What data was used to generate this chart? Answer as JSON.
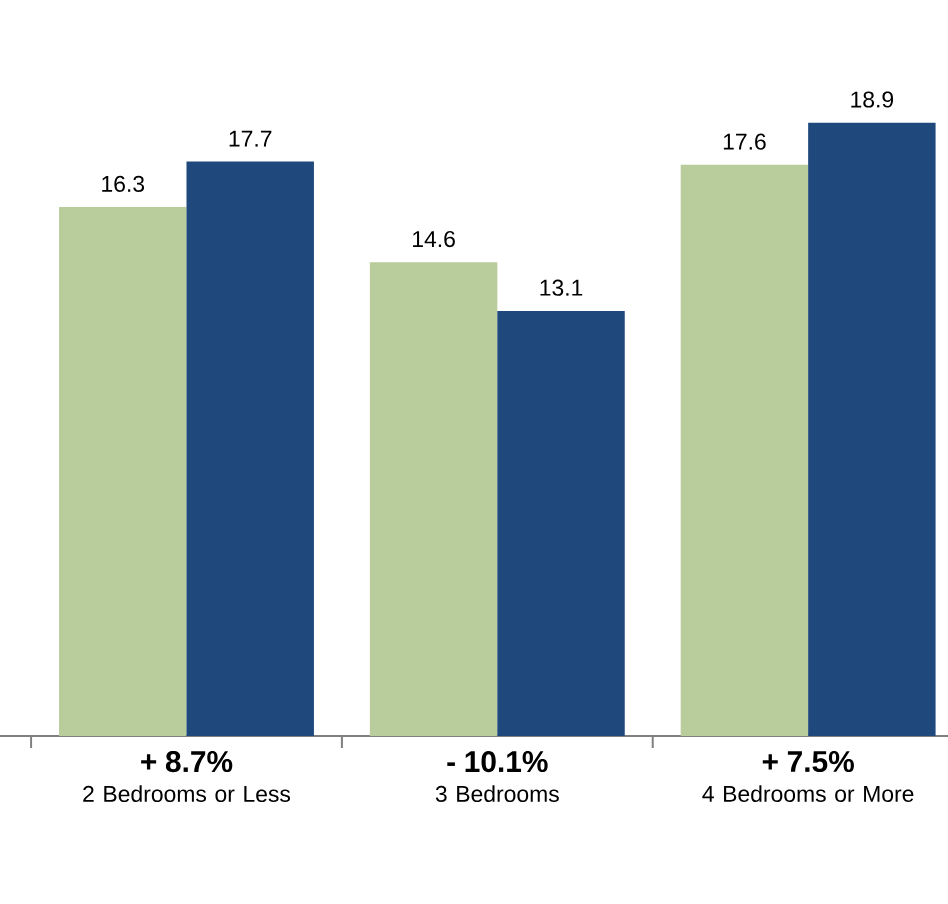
{
  "chart_data": {
    "type": "bar",
    "categories": [
      "2 Bedrooms or Less",
      "3 Bedrooms",
      "4 Bedrooms or More"
    ],
    "series": [
      {
        "color": "#b9cc9b",
        "values": [
          16.3,
          14.6,
          17.6
        ]
      },
      {
        "color": "#1f497d",
        "values": [
          17.7,
          13.1,
          18.9
        ]
      }
    ],
    "data_labels": true,
    "annotations": [
      "+ 8.7%",
      "- 10.1%",
      "+ 7.5%"
    ]
  }
}
